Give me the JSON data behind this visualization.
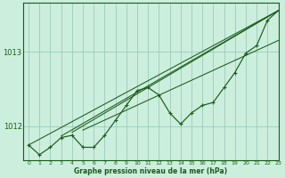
{
  "title": "Graphe pression niveau de la mer (hPa)",
  "bg_color": "#cceedd",
  "grid_color": "#99ccbb",
  "line_color": "#1a5c1a",
  "xlim": [
    -0.5,
    23
  ],
  "ylim": [
    1011.55,
    1013.65
  ],
  "yticks": [
    1012,
    1013
  ],
  "xticks": [
    0,
    1,
    2,
    3,
    4,
    5,
    6,
    7,
    8,
    9,
    10,
    11,
    12,
    13,
    14,
    15,
    16,
    17,
    18,
    19,
    20,
    21,
    22,
    23
  ],
  "main_series": [
    1011.75,
    1011.62,
    1011.72,
    1011.85,
    1011.88,
    1011.72,
    1011.72,
    1011.88,
    1012.08,
    1012.28,
    1012.48,
    1012.52,
    1012.42,
    1012.18,
    1012.03,
    1012.18,
    1012.28,
    1012.32,
    1012.52,
    1012.72,
    1012.98,
    1013.08,
    1013.42,
    1013.55
  ],
  "straight_lines": [
    {
      "x0": 0,
      "y0": 1011.75,
      "x1": 23,
      "y1": 1013.55
    },
    {
      "x0": 3,
      "y0": 1011.87,
      "x1": 23,
      "y1": 1013.55
    },
    {
      "x0": 4,
      "y0": 1011.92,
      "x1": 23,
      "y1": 1013.55
    },
    {
      "x0": 5,
      "y0": 1011.95,
      "x1": 23,
      "y1": 1013.15
    }
  ],
  "marker": "+"
}
